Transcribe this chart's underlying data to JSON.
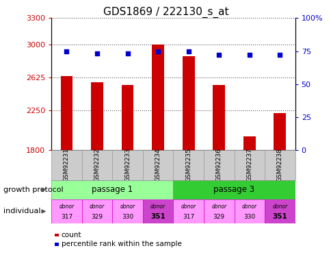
{
  "title": "GDS1869 / 222130_s_at",
  "samples": [
    "GSM92231",
    "GSM92232",
    "GSM92233",
    "GSM92234",
    "GSM92235",
    "GSM92236",
    "GSM92237",
    "GSM92238"
  ],
  "counts": [
    2640,
    2570,
    2540,
    3000,
    2870,
    2540,
    1960,
    2220
  ],
  "percentiles": [
    75,
    73,
    73,
    75,
    75,
    72,
    72,
    72
  ],
  "ymin": 1800,
  "ymax": 3300,
  "yticks": [
    1800,
    2250,
    2625,
    3000,
    3300
  ],
  "ytick_labels": [
    "1800",
    "2250",
    "2625",
    "3000",
    "3300"
  ],
  "y2ticks": [
    0,
    25,
    50,
    75,
    100
  ],
  "y2tick_labels": [
    "0",
    "25",
    "50",
    "75",
    "100%"
  ],
  "bar_color": "#cc0000",
  "dot_color": "#0000cc",
  "passage1_color": "#99ff99",
  "passage3_color": "#33cc33",
  "donor_light_color": "#ff99ff",
  "donor_dark_color": "#cc44cc",
  "donors": [
    "317",
    "329",
    "330",
    "351",
    "317",
    "329",
    "330",
    "351"
  ],
  "donor_bold": [
    false,
    false,
    false,
    true,
    false,
    false,
    false,
    true
  ],
  "grid_color": "#555555",
  "tick_color_left": "#cc0000",
  "tick_color_right": "#0000cc",
  "sample_box_color": "#cccccc",
  "plot_bg": "#ffffff",
  "bar_width": 0.4
}
